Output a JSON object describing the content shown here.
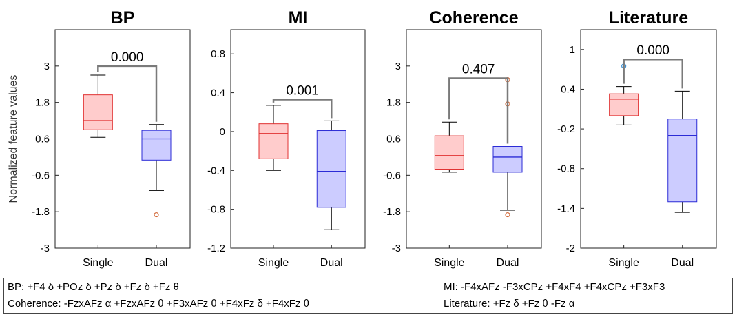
{
  "chart_data": [
    {
      "type": "box",
      "title": "BP",
      "ylabel": "Normalized feature values",
      "xlabel": "",
      "ylim": [
        -3,
        4.2
      ],
      "yticks": [
        "-3",
        "-1.8",
        "-0.6",
        "0.6",
        "1.8",
        "3"
      ],
      "categories": [
        "Single",
        "Dual"
      ],
      "boxes": [
        {
          "group": "Single",
          "q1": 0.9,
          "median": 1.2,
          "q3": 2.05,
          "whisker_low": 0.65,
          "whisker_high": 2.7,
          "outliers": []
        },
        {
          "group": "Dual",
          "q1": -0.1,
          "median": 0.6,
          "q3": 0.88,
          "whisker_low": -1.1,
          "whisker_high": 1.07,
          "outliers": [
            -1.9
          ]
        }
      ],
      "p_value": "0.000",
      "bracket_y": 3.0
    },
    {
      "type": "box",
      "title": "MI",
      "xlabel": "",
      "ylim": [
        -1.2,
        1.05
      ],
      "yticks": [
        "-1.2",
        "-0.8",
        "-0.4",
        "0",
        "0.4",
        "0.8"
      ],
      "categories": [
        "Single",
        "Dual"
      ],
      "boxes": [
        {
          "group": "Single",
          "q1": -0.28,
          "median": -0.02,
          "q3": 0.08,
          "whisker_low": -0.4,
          "whisker_high": 0.27,
          "outliers": []
        },
        {
          "group": "Dual",
          "q1": -0.78,
          "median": -0.41,
          "q3": 0.01,
          "whisker_low": -1.01,
          "whisker_high": 0.11,
          "outliers": []
        }
      ],
      "p_value": "0.001",
      "bracket_y": 0.33
    },
    {
      "type": "box",
      "title": "Coherence",
      "xlabel": "",
      "ylim": [
        -3,
        4.2
      ],
      "yticks": [
        "-3",
        "-1.8",
        "-0.6",
        "0.6",
        "1.8",
        "3"
      ],
      "categories": [
        "Single",
        "Dual"
      ],
      "boxes": [
        {
          "group": "Single",
          "q1": -0.4,
          "median": 0.05,
          "q3": 0.7,
          "whisker_low": -0.5,
          "whisker_high": 1.15,
          "outliers": []
        },
        {
          "group": "Dual",
          "q1": -0.5,
          "median": 0.0,
          "q3": 0.35,
          "whisker_low": -1.75,
          "whisker_high": 0.35,
          "outliers": [
            2.55,
            1.75,
            -1.9
          ]
        }
      ],
      "p_value": "0.407",
      "bracket_y": 2.6
    },
    {
      "type": "box",
      "title": "Literature",
      "xlabel": "",
      "ylim": [
        -2,
        1.3
      ],
      "yticks": [
        "-2",
        "-1.4",
        "-0.8",
        "-0.2",
        "0.4",
        "1"
      ],
      "categories": [
        "Single",
        "Dual"
      ],
      "boxes": [
        {
          "group": "Single",
          "q1": 0.0,
          "median": 0.25,
          "q3": 0.33,
          "whisker_low": -0.14,
          "whisker_high": 0.44,
          "outliers": [
            0.75
          ]
        },
        {
          "group": "Dual",
          "q1": -1.3,
          "median": -0.3,
          "q3": -0.05,
          "whisker_low": -1.46,
          "whisker_high": 0.37,
          "outliers": []
        }
      ],
      "p_value": "0.000",
      "bracket_y": 0.85
    }
  ],
  "legend": {
    "bp": "BP: +F4 δ +POz δ +Pz δ +Fz δ +Fz θ",
    "coherence": "Coherence: -FzxAFz α +FzxAFz θ +F3xAFz θ +F4xFz δ +F4xFz θ",
    "mi": "MI: -F4xAFz -F3xCPz +F4xF4 +F4xCPz +F3xF3",
    "literature": "Literature: +Fz δ +Fz θ -Fz α"
  },
  "colors": {
    "single_fill": "#ffcccc",
    "single_stroke": "#e03030",
    "dual_fill": "#ccccff",
    "dual_stroke": "#2b2bd6",
    "outlier": "#d26a3a",
    "outlier_blue": "#3a8fd2",
    "bracket": "#7a7a7a"
  }
}
